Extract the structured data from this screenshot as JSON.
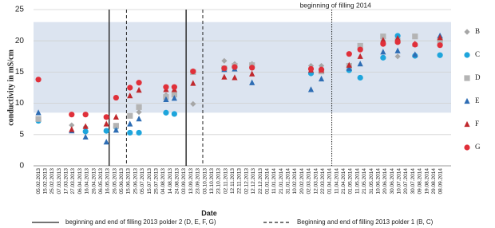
{
  "chart_data": {
    "type": "scatter",
    "x_label": "Date",
    "y_label": "conductivity  in mS/cm",
    "xlim": [
      -7,
      595
    ],
    "ylim": [
      0,
      25
    ],
    "yticks": [
      0,
      5,
      10,
      15,
      20,
      25
    ],
    "grid": true,
    "band": [
      8.5,
      23
    ],
    "band_color": "#dce4f0",
    "xticks": [
      {
        "value": 0,
        "label": "05.02.2013"
      },
      {
        "value": 10,
        "label": "15.02.2013"
      },
      {
        "value": 20,
        "label": "25.02.2013"
      },
      {
        "value": 30,
        "label": "07.03.2013"
      },
      {
        "value": 40,
        "label": "17.03.2013"
      },
      {
        "value": 50,
        "label": "27.03.2013"
      },
      {
        "value": 60,
        "label": "06.04.2013"
      },
      {
        "value": 70,
        "label": "16.04.2013"
      },
      {
        "value": 80,
        "label": "26.04.2013"
      },
      {
        "value": 90,
        "label": "06.05.2013"
      },
      {
        "value": 100,
        "label": "16.05.2013"
      },
      {
        "value": 110,
        "label": "26.05.2013"
      },
      {
        "value": 120,
        "label": "05.06.2013"
      },
      {
        "value": 130,
        "label": "15.06.2013"
      },
      {
        "value": 140,
        "label": "25.06.2013"
      },
      {
        "value": 150,
        "label": "05.07.2013"
      },
      {
        "value": 160,
        "label": "15.07.2013"
      },
      {
        "value": 170,
        "label": "25.07.2013"
      },
      {
        "value": 180,
        "label": "04.08.2013"
      },
      {
        "value": 190,
        "label": "14.08.2013"
      },
      {
        "value": 200,
        "label": "24.08.2013"
      },
      {
        "value": 210,
        "label": "03.09.2013"
      },
      {
        "value": 220,
        "label": "13.09.2013"
      },
      {
        "value": 230,
        "label": "23.09.2013"
      },
      {
        "value": 240,
        "label": "03.10.2013"
      },
      {
        "value": 250,
        "label": "13.10.2013"
      },
      {
        "value": 260,
        "label": "23.10.2013"
      },
      {
        "value": 270,
        "label": "02.11.2013"
      },
      {
        "value": 280,
        "label": "12.11.2013"
      },
      {
        "value": 290,
        "label": "22.11.2013"
      },
      {
        "value": 300,
        "label": "02.12.2013"
      },
      {
        "value": 310,
        "label": "12.12.2013"
      },
      {
        "value": 320,
        "label": "22.12.2013"
      },
      {
        "value": 330,
        "label": "01.01.2014"
      },
      {
        "value": 340,
        "label": "11.01.2014"
      },
      {
        "value": 350,
        "label": "21.01.2014"
      },
      {
        "value": 360,
        "label": "31.01.2014"
      },
      {
        "value": 370,
        "label": "10.02.2014"
      },
      {
        "value": 380,
        "label": "20.02.2014"
      },
      {
        "value": 390,
        "label": "02.03.2014"
      },
      {
        "value": 400,
        "label": "12.03.2014"
      },
      {
        "value": 410,
        "label": "22.03.2014"
      },
      {
        "value": 420,
        "label": "01.04.2014"
      },
      {
        "value": 430,
        "label": "11.04.2014"
      },
      {
        "value": 440,
        "label": "21.04.2014"
      },
      {
        "value": 450,
        "label": "01.05.2014"
      },
      {
        "value": 460,
        "label": "11.05.2014"
      },
      {
        "value": 470,
        "label": "21.05.2014"
      },
      {
        "value": 480,
        "label": "31.05.2014"
      },
      {
        "value": 490,
        "label": "10.06.2014"
      },
      {
        "value": 500,
        "label": "20.06.2014"
      },
      {
        "value": 510,
        "label": "30.06.2014"
      },
      {
        "value": 520,
        "label": "10.07.2014"
      },
      {
        "value": 530,
        "label": "20.07.2014"
      },
      {
        "value": 540,
        "label": "30.07.2014"
      },
      {
        "value": 550,
        "label": "09.08.2014"
      },
      {
        "value": 560,
        "label": "19.08.2014"
      },
      {
        "value": 570,
        "label": "29.08.2014"
      },
      {
        "value": 580,
        "label": "08.09.2014"
      }
    ],
    "vlines": [
      {
        "x": 102,
        "style": "solid"
      },
      {
        "x": 213,
        "style": "solid"
      },
      {
        "x": 127,
        "style": "dashed"
      },
      {
        "x": 237,
        "style": "dashed"
      },
      {
        "x": 423,
        "style": "dotted"
      }
    ],
    "annotation": {
      "text": "beginning of filling 2014",
      "x": 423
    },
    "line_legend": [
      {
        "label": "beginning and end of filling 2013 polder 2 (D, E, F, G)",
        "style": "solid"
      },
      {
        "label": "Beginning and end of filling 2013 polder 1 (B, C)",
        "style": "dashed"
      }
    ],
    "series": [
      {
        "name": "B",
        "color": "#a6a6a6",
        "marker": "diamond",
        "x": [
          48,
          68,
          112,
          145,
          184,
          223,
          268,
          283,
          308,
          393,
          408,
          497,
          518
        ],
        "values": [
          6.5,
          6.2,
          6.3,
          8.6,
          11.3,
          9.9,
          16.8,
          16.3,
          16.3,
          16,
          16,
          20,
          17.5
        ]
      },
      {
        "name": "C",
        "color": "#1ea5dc",
        "marker": "circle",
        "x": [
          0,
          68,
          98,
          112,
          132,
          145,
          184,
          196,
          393,
          448,
          464,
          497,
          518,
          543,
          579
        ],
        "values": [
          7.2,
          5.5,
          5.6,
          6.2,
          5.3,
          5.3,
          8.5,
          8.3,
          14.8,
          15.3,
          14.1,
          17.3,
          20.8,
          17.6,
          17.7
        ]
      },
      {
        "name": "D",
        "color": "#b4b4b4",
        "marker": "square",
        "x": [
          0,
          112,
          132,
          145,
          184,
          196,
          223,
          268,
          283,
          308,
          408,
          448,
          464,
          497,
          518,
          543,
          579
        ],
        "values": [
          7.5,
          6.4,
          8,
          9.4,
          11,
          11.4,
          15,
          15.6,
          16,
          16.1,
          15.1,
          16,
          19.2,
          20.7,
          20,
          20.7,
          20
        ]
      },
      {
        "name": "E",
        "color": "#2e6db4",
        "marker": "triangle",
        "x": [
          0,
          48,
          68,
          98,
          112,
          132,
          145,
          184,
          196,
          268,
          283,
          308,
          393,
          408,
          448,
          464,
          497,
          518,
          543,
          579
        ],
        "values": [
          8.5,
          5.6,
          4.6,
          3.8,
          5.7,
          6.7,
          7.5,
          10.6,
          10.8,
          15.4,
          15.5,
          13.3,
          12.2,
          13.9,
          15.6,
          16.3,
          18.2,
          18.4,
          17.8,
          20.8
        ]
      },
      {
        "name": "F",
        "color": "#c0282d",
        "marker": "triangle",
        "x": [
          48,
          68,
          98,
          112,
          132,
          145,
          184,
          196,
          223,
          268,
          283,
          308,
          393,
          408,
          448,
          464,
          497,
          518,
          543,
          579
        ],
        "values": [
          5.8,
          6.3,
          6.7,
          7.8,
          11.2,
          12.1,
          12.2,
          12.2,
          13.2,
          14.2,
          14.1,
          14.7,
          15.3,
          15.3,
          16.1,
          17.5,
          20.1,
          20.4,
          19.5,
          20.5
        ]
      },
      {
        "name": "G",
        "color": "#e0303a",
        "marker": "circle",
        "x": [
          0,
          48,
          68,
          98,
          112,
          132,
          145,
          184,
          196,
          223,
          268,
          283,
          308,
          393,
          408,
          448,
          464,
          497,
          518,
          543,
          579
        ],
        "values": [
          13.8,
          8.2,
          8.2,
          7.8,
          10.9,
          12.5,
          13.3,
          12.6,
          12.6,
          15.1,
          15.6,
          15.8,
          15.7,
          15.5,
          15.4,
          17.9,
          18.6,
          19.5,
          19.8,
          19.4,
          19.3
        ]
      }
    ]
  }
}
